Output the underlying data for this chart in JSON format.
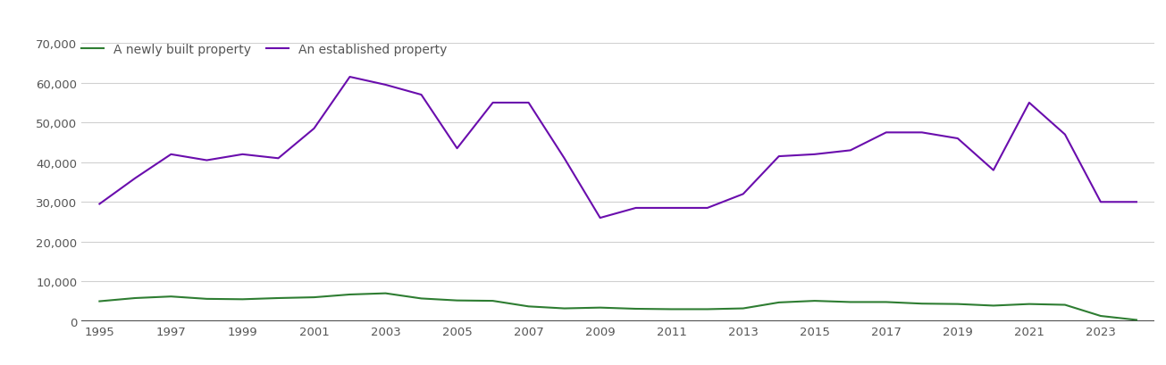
{
  "years": [
    1995,
    1996,
    1997,
    1998,
    1999,
    2000,
    2001,
    2002,
    2003,
    2004,
    2005,
    2006,
    2007,
    2008,
    2009,
    2010,
    2011,
    2012,
    2013,
    2014,
    2015,
    2016,
    2017,
    2018,
    2019,
    2020,
    2021,
    2022,
    2023,
    2024
  ],
  "new_build": [
    5000,
    5800,
    6200,
    5600,
    5500,
    5800,
    6000,
    6700,
    7000,
    5700,
    5200,
    5100,
    3700,
    3200,
    3400,
    3100,
    3000,
    3000,
    3200,
    4700,
    5100,
    4800,
    4800,
    4400,
    4300,
    3900,
    4300,
    4100,
    1300,
    300
  ],
  "established": [
    29500,
    36000,
    42000,
    40500,
    42000,
    41000,
    48500,
    61500,
    59500,
    57000,
    43500,
    55000,
    55000,
    41000,
    26000,
    28500,
    28500,
    28500,
    32000,
    41500,
    42000,
    43000,
    47500,
    47500,
    46000,
    38000,
    55000,
    47000,
    30000,
    30000
  ],
  "new_build_color": "#2e7d32",
  "established_color": "#6a0dad",
  "new_build_label": "A newly built property",
  "established_label": "An established property",
  "ylim": [
    0,
    70000
  ],
  "yticks": [
    0,
    10000,
    20000,
    30000,
    40000,
    50000,
    60000,
    70000
  ],
  "xtick_years": [
    1995,
    1997,
    1999,
    2001,
    2003,
    2005,
    2007,
    2009,
    2011,
    2013,
    2015,
    2017,
    2019,
    2021,
    2023
  ],
  "xlim_min": 1994.5,
  "xlim_max": 2024.5,
  "background_color": "#ffffff",
  "grid_color": "#d0d0d0",
  "line_width": 1.5,
  "legend_fontsize": 10,
  "tick_fontsize": 9.5
}
